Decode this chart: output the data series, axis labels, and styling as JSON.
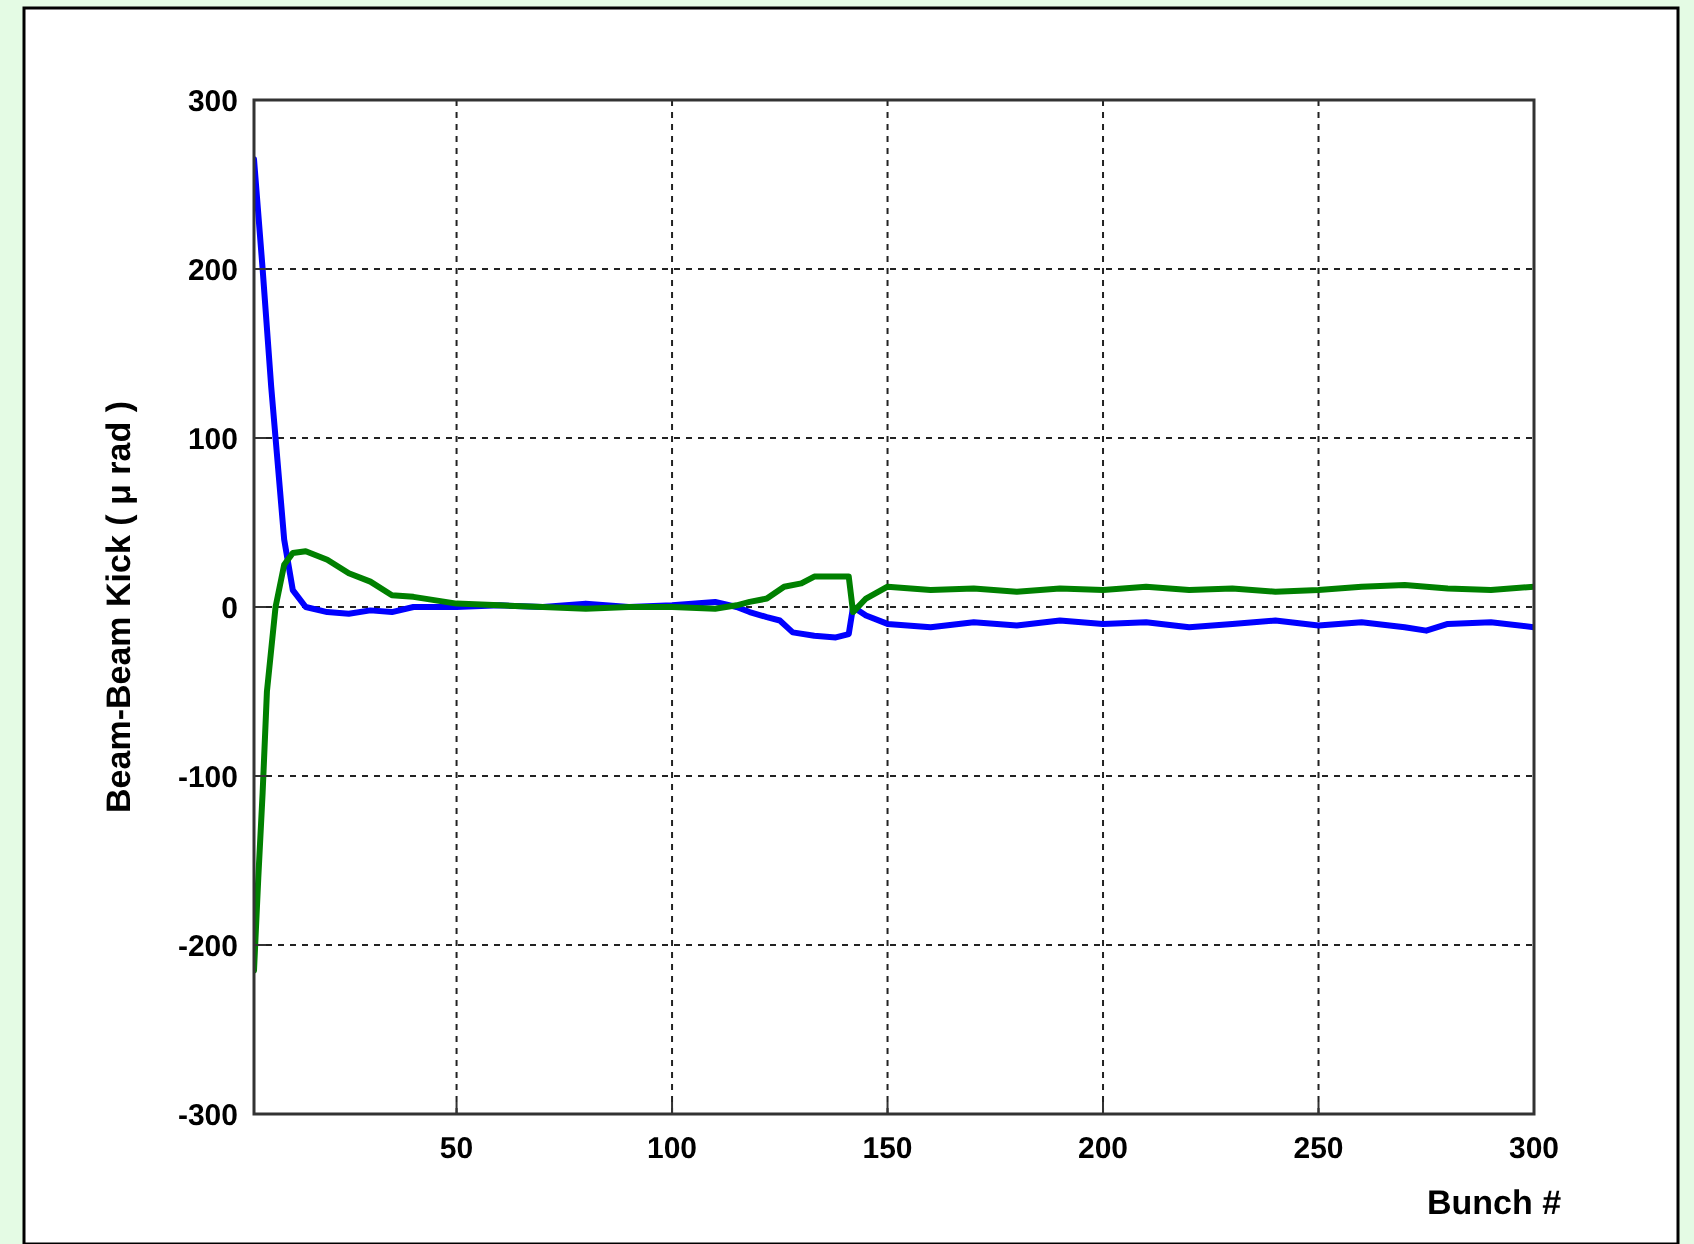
{
  "chart_data": {
    "type": "line",
    "xlabel": "Bunch #",
    "ylabel": "Beam-Beam Kick ( μ rad )",
    "xlim": [
      3,
      300
    ],
    "ylim": [
      -300,
      300
    ],
    "xticks": [
      50,
      100,
      150,
      200,
      250,
      300
    ],
    "yticks": [
      -300,
      -200,
      -100,
      0,
      100,
      200,
      300
    ],
    "grid": true,
    "marker": "none",
    "line_style": "solid",
    "series": [
      {
        "color": "#0000ff",
        "x": [
          3,
          5,
          7,
          8,
          10,
          12,
          15,
          20,
          25,
          30,
          35,
          40,
          50,
          60,
          70,
          80,
          90,
          100,
          110,
          115,
          118,
          122,
          125,
          128,
          133,
          138,
          141,
          142,
          145,
          150,
          160,
          170,
          180,
          190,
          200,
          210,
          220,
          230,
          240,
          250,
          260,
          270,
          275,
          280,
          290,
          300
        ],
        "values": [
          265,
          200,
          130,
          100,
          40,
          10,
          0,
          -3,
          -4,
          -2,
          -3,
          0,
          0,
          1,
          0,
          2,
          0,
          1,
          3,
          0,
          -3,
          -6,
          -8,
          -15,
          -17,
          -18,
          -16,
          0,
          -5,
          -10,
          -12,
          -9,
          -11,
          -8,
          -10,
          -9,
          -12,
          -10,
          -8,
          -11,
          -9,
          -12,
          -14,
          -10,
          -9,
          -12
        ]
      },
      {
        "color": "#008000",
        "x": [
          3,
          4,
          5,
          6,
          8,
          10,
          12,
          15,
          20,
          25,
          30,
          35,
          40,
          50,
          60,
          70,
          80,
          90,
          100,
          110,
          115,
          118,
          122,
          126,
          130,
          133,
          138,
          141,
          142,
          145,
          150,
          160,
          170,
          180,
          190,
          200,
          210,
          220,
          230,
          240,
          250,
          260,
          270,
          280,
          290,
          300
        ],
        "values": [
          -215,
          -160,
          -110,
          -50,
          0,
          25,
          32,
          33,
          28,
          20,
          15,
          7,
          6,
          2,
          1,
          0,
          -1,
          0,
          0,
          -1,
          1,
          3,
          5,
          12,
          14,
          18,
          18,
          18,
          -3,
          5,
          12,
          10,
          11,
          9,
          11,
          10,
          12,
          10,
          11,
          9,
          10,
          12,
          13,
          11,
          10,
          12
        ]
      }
    ]
  }
}
